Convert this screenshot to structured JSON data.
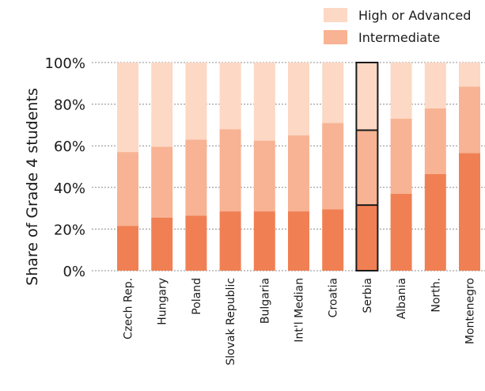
{
  "chart_data": {
    "type": "bar",
    "stacked": true,
    "title": "",
    "xlabel": "",
    "ylabel": "Share of Grade 4 students",
    "ylim": [
      0,
      100
    ],
    "yticks": [
      "0%",
      "20%",
      "40%",
      "60%",
      "80%",
      "100%"
    ],
    "ytick_values": [
      0,
      20,
      40,
      60,
      80,
      100
    ],
    "categories": [
      "Czech Rep.",
      "Hungary",
      "Poland",
      "Slovak Republic",
      "Bulgaria",
      "Int'l Median",
      "Croatia",
      "Serbia",
      "Albania",
      "North.",
      "Montenegro"
    ],
    "highlighted_category": "Serbia",
    "legend_position": "top-right",
    "series": [
      {
        "key": "low",
        "values": [
          21.5,
          25.5,
          26.5,
          28.5,
          28.5,
          28.5,
          29.5,
          31.5,
          37,
          46.5,
          56.5
        ],
        "color": "#f08054"
      },
      {
        "name": "Intermediate",
        "values": [
          35.5,
          34,
          36.5,
          39.5,
          34,
          36.5,
          41.5,
          36,
          36,
          31.5,
          32
        ],
        "color": "#f7b393"
      },
      {
        "name": "High or Advanced",
        "values": [
          43,
          40.5,
          37,
          32,
          37.5,
          35,
          29,
          32.5,
          27,
          22,
          11.5
        ],
        "color": "#fcd8c5"
      }
    ]
  }
}
